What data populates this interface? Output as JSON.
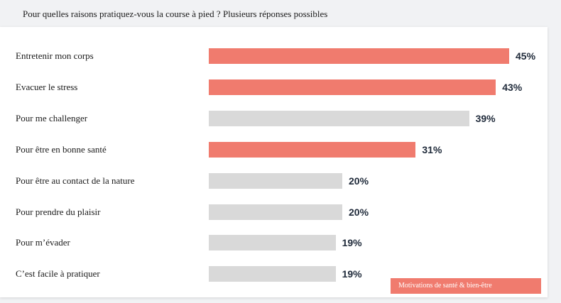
{
  "chart_data": {
    "type": "bar",
    "orientation": "horizontal",
    "title": "Pour quelles raisons pratiquez-vous la course à pied ? Plusieurs réponses possibles",
    "categories": [
      "Entretenir mon corps",
      "Evacuer le stress",
      "Pour me challenger",
      "Pour être en bonne santé",
      "Pour être au contact de la nature",
      "Pour prendre du plaisir",
      "Pour m’évader",
      "C’est facile à pratiquer"
    ],
    "values": [
      45,
      43,
      39,
      31,
      20,
      20,
      19,
      19
    ],
    "value_labels": [
      "45%",
      "43%",
      "39%",
      "31%",
      "20%",
      "20%",
      "19%",
      "19%"
    ],
    "highlighted": [
      true,
      true,
      false,
      true,
      false,
      false,
      false,
      false
    ],
    "unit": "%",
    "xlim": [
      0,
      45
    ],
    "grid": false,
    "legend": {
      "placement": "bottom-right",
      "entries": [
        {
          "label": "Motivations de santé & bien-être",
          "color": "#f07b6e"
        }
      ]
    },
    "colors": {
      "highlight": "#f07b6e",
      "default": "#d9d9d9"
    }
  }
}
